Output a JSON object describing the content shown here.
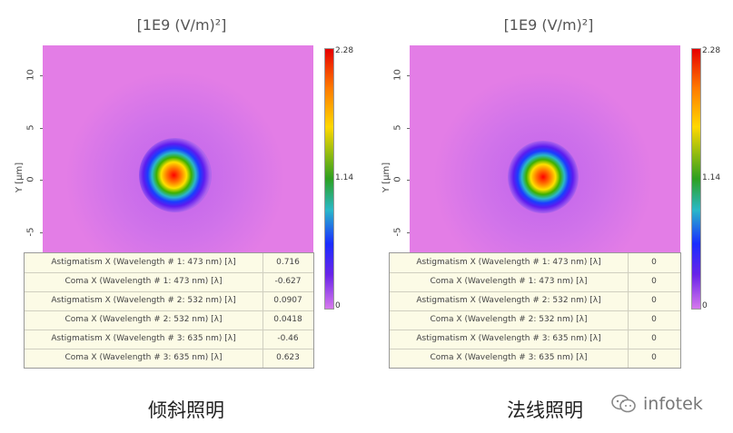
{
  "chart_data": [
    {
      "type": "heatmap",
      "title": "[1E9 (V/m)²]",
      "ylabel": "Y [µm]",
      "y_ticks": [
        "10",
        "5",
        "0",
        "-5"
      ],
      "colorbar_ticks": [
        "2.28",
        "1.14",
        "0"
      ],
      "colorbar_range": [
        0,
        2.28
      ],
      "peak_value": 2.28,
      "aberrations": [
        {
          "label": "Astigmatism X (Wavelength # 1: 473 nm) [λ]",
          "value": "0.716"
        },
        {
          "label": "Coma X (Wavelength # 1: 473 nm) [λ]",
          "value": "-0.627"
        },
        {
          "label": "Astigmatism X (Wavelength # 2: 532 nm) [λ]",
          "value": "0.0907"
        },
        {
          "label": "Coma X (Wavelength # 2: 532 nm) [λ]",
          "value": "0.0418"
        },
        {
          "label": "Astigmatism X (Wavelength # 3: 635 nm) [λ]",
          "value": "-0.46"
        },
        {
          "label": "Coma X (Wavelength # 3: 635 nm) [λ]",
          "value": "0.623"
        }
      ],
      "caption": "倾斜照明"
    },
    {
      "type": "heatmap",
      "title": "[1E9 (V/m)²]",
      "ylabel": "Y [µm]",
      "y_ticks": [
        "10",
        "5",
        "0",
        "-5"
      ],
      "colorbar_ticks": [
        "2.28",
        "1.14",
        "0"
      ],
      "colorbar_range": [
        0,
        2.28
      ],
      "peak_value": 2.28,
      "aberrations": [
        {
          "label": "Astigmatism X (Wavelength # 1: 473 nm) [λ]",
          "value": "0"
        },
        {
          "label": "Coma X (Wavelength # 1: 473 nm) [λ]",
          "value": "0"
        },
        {
          "label": "Astigmatism X (Wavelength # 2: 532 nm) [λ]",
          "value": "0"
        },
        {
          "label": "Coma X (Wavelength # 2: 532 nm) [λ]",
          "value": "0"
        },
        {
          "label": "Astigmatism X (Wavelength # 3: 635 nm) [λ]",
          "value": "0"
        },
        {
          "label": "Coma X (Wavelength # 3: 635 nm) [λ]",
          "value": "0"
        }
      ],
      "caption": "法线照明"
    }
  ],
  "watermark": {
    "text": "infotek",
    "icon": "wechat-icon"
  },
  "colors": {
    "background": "#e37de6",
    "table_bg": "#fcfbe6"
  }
}
